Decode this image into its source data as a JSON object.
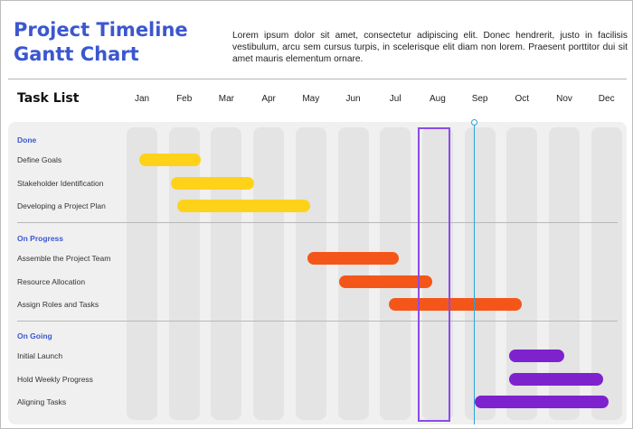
{
  "header": {
    "title_line1": "Project Timeline",
    "title_line2": "Gantt Chart",
    "description": "Lorem ipsum dolor sit amet, consectetur adipiscing elit. Donec hendrerit, justo in facilisis vestibulum, arcu sem cursus turpis, in scelerisque elit diam non lorem. Praesent porttitor dui sit amet mauris elementum ornare."
  },
  "chart_data": {
    "type": "gantt",
    "task_list_label": "Task List",
    "months": [
      "Jan",
      "Feb",
      "Mar",
      "Apr",
      "May",
      "Jun",
      "Jul",
      "Aug",
      "Sep",
      "Oct",
      "Nov",
      "Dec"
    ],
    "highlighted_month": "Aug",
    "today_marker_month": 8.85,
    "sections": [
      {
        "name": "Done",
        "color": "#FFD21A",
        "tasks": [
          {
            "name": "Define Goals",
            "start": 0.94,
            "end": 2.39
          },
          {
            "name": "Stakeholder Identification",
            "start": 1.69,
            "end": 3.66
          },
          {
            "name": "Developing a Project Plan",
            "start": 1.84,
            "end": 4.98
          }
        ]
      },
      {
        "name": "On Progress",
        "color": "#F4561A",
        "tasks": [
          {
            "name": "Assemble the Project Team",
            "start": 4.92,
            "end": 7.08
          },
          {
            "name": "Resource Allocation",
            "start": 5.67,
            "end": 7.87
          },
          {
            "name": "Assign Roles and Tasks",
            "start": 6.85,
            "end": 9.99
          }
        ]
      },
      {
        "name": "On Going",
        "color": "#7E22CE",
        "tasks": [
          {
            "name": "Initial Launch",
            "start": 9.69,
            "end": 11.0
          },
          {
            "name": "Hold Weekly Progress",
            "start": 9.69,
            "end": 11.92
          },
          {
            "name": "Aligning Tasks",
            "start": 8.88,
            "end": 12.05
          }
        ]
      }
    ]
  }
}
